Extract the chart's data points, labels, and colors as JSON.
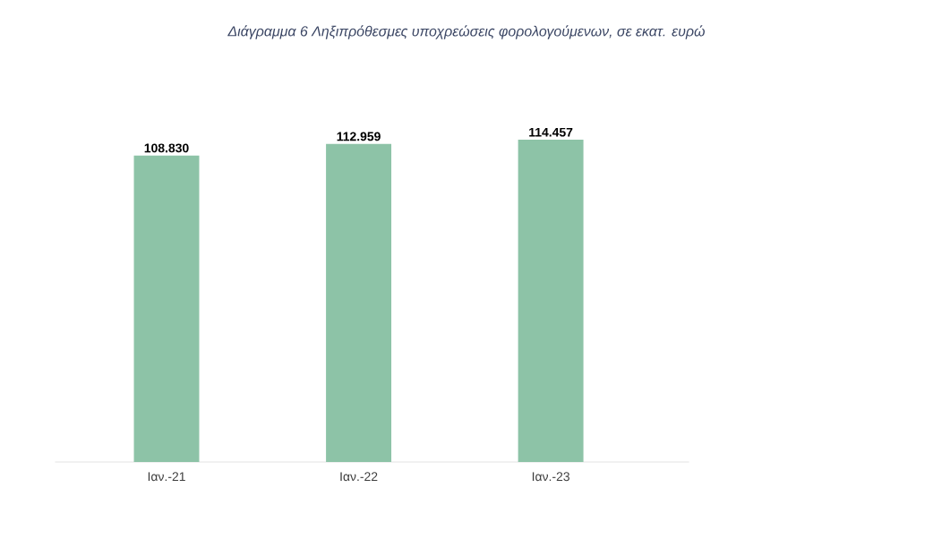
{
  "chart_data": {
    "type": "bar",
    "title": "Διάγραμμα 6 Ληξιπρόθεσμες υποχρεώσεις φορολογούμενων, σε εκατ. ευρώ",
    "categories": [
      "Ιαν.-21",
      "Ιαν.-22",
      "Ιαν.-23"
    ],
    "values": [
      108830,
      112959,
      114457
    ],
    "value_labels": [
      "108.830",
      "112.959",
      "114.457"
    ],
    "color": "#8dc3a7",
    "tick_labels": "x"
  }
}
